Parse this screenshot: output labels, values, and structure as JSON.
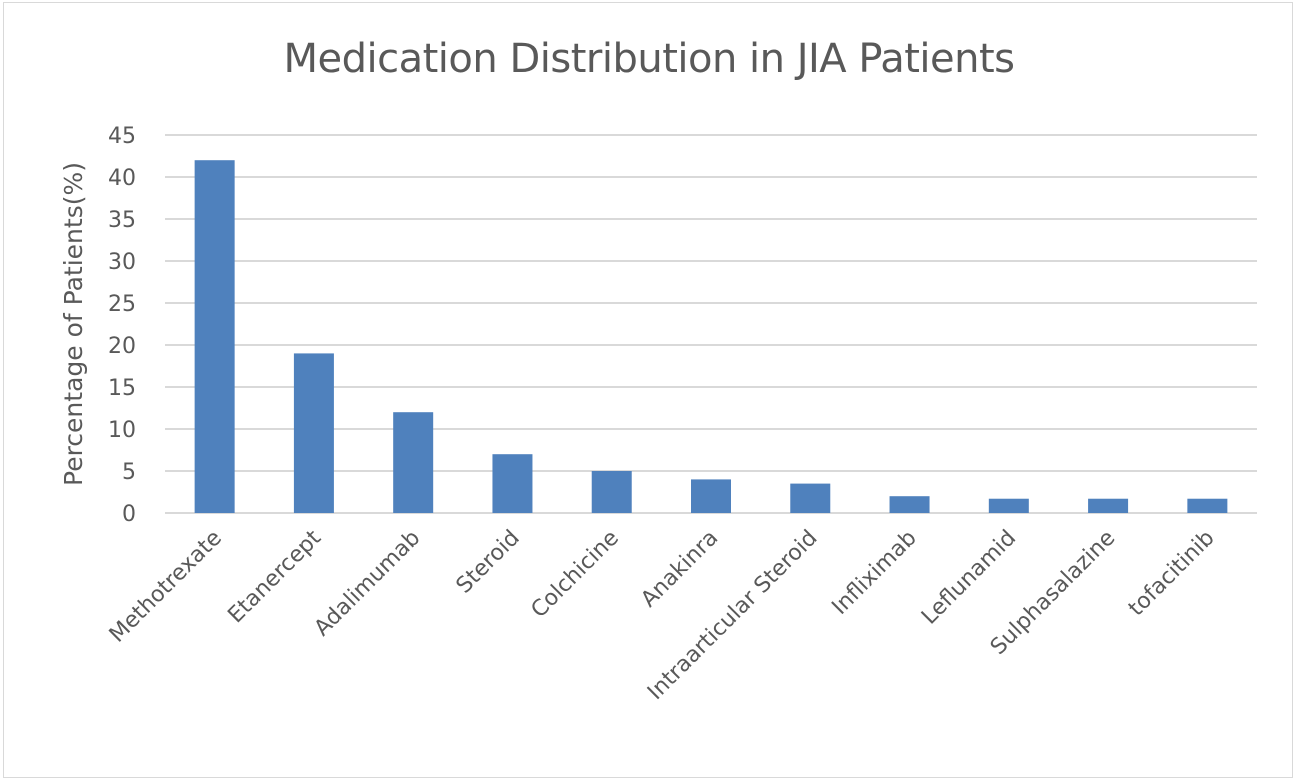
{
  "chart_data": {
    "type": "bar",
    "title": "Medication Distribution in JIA Patients",
    "xlabel": "",
    "ylabel": "Percentage of Patients(%)",
    "ylim": [
      0,
      45
    ],
    "yticks": [
      0,
      5,
      10,
      15,
      20,
      25,
      30,
      35,
      40,
      45
    ],
    "grid": true,
    "legend": "none",
    "bar_color": "#4f81bd",
    "categories": [
      "Methotrexate",
      "Etanercept",
      "Adalimumab",
      "Steroid",
      "Colchicine",
      "Anakinra",
      "Intraarticular Steroid",
      "Infliximab",
      "Leflunamid",
      "Sulphasalazine",
      "tofacitinib"
    ],
    "values": [
      42,
      19,
      12,
      7,
      5,
      4,
      3.5,
      2,
      1.7,
      1.7,
      1.7
    ]
  }
}
